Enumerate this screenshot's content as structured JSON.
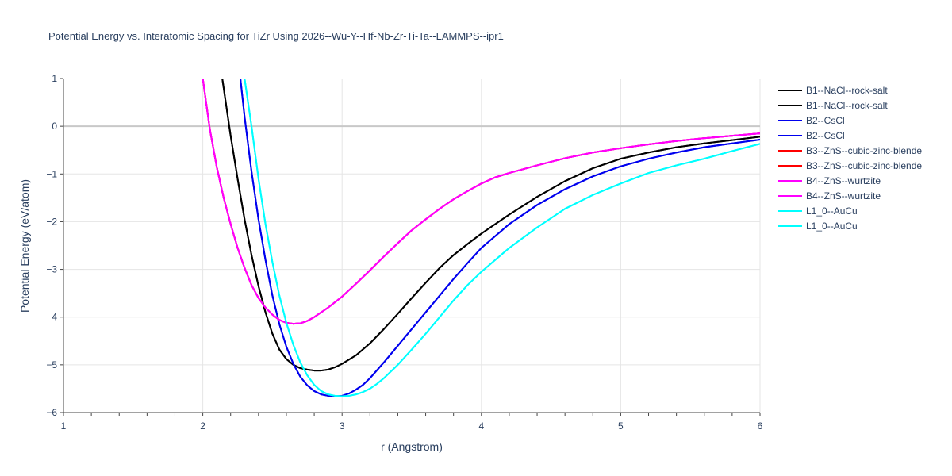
{
  "chart_data": {
    "type": "line",
    "title": "Potential Energy vs. Interatomic Spacing for TiZr Using 2026--Wu-Y--Hf-Nb-Zr-Ti-Ta--LAMMPS--ipr1",
    "xlabel": "r (Angstrom)",
    "ylabel": "Potential Energy (eV/atom)",
    "xlim": [
      1,
      6
    ],
    "ylim": [
      -6,
      1
    ],
    "xticks": [
      "1",
      "2",
      "3",
      "4",
      "5",
      "6"
    ],
    "yticks": [
      "1",
      "0",
      "−1",
      "−2",
      "−3",
      "−4",
      "−5",
      "−6"
    ],
    "grid": true,
    "legend_position": "right",
    "series": [
      {
        "name": "B1--NaCl--rock-salt",
        "color": "#000000",
        "x": [
          2.14,
          2.2,
          2.25,
          2.3,
          2.35,
          2.4,
          2.45,
          2.5,
          2.55,
          2.6,
          2.65,
          2.7,
          2.75,
          2.8,
          2.85,
          2.9,
          2.95,
          3.0,
          3.1,
          3.2,
          3.3,
          3.4,
          3.5,
          3.6,
          3.7,
          3.8,
          3.9,
          4.0,
          4.2,
          4.4,
          4.6,
          4.8,
          5.0,
          5.2,
          5.4,
          5.6,
          5.8,
          6.0
        ],
        "y": [
          1.0,
          -0.2,
          -1.1,
          -1.95,
          -2.7,
          -3.35,
          -3.9,
          -4.35,
          -4.68,
          -4.88,
          -5.0,
          -5.07,
          -5.1,
          -5.12,
          -5.12,
          -5.1,
          -5.05,
          -4.98,
          -4.8,
          -4.55,
          -4.25,
          -3.93,
          -3.6,
          -3.28,
          -2.97,
          -2.7,
          -2.47,
          -2.25,
          -1.85,
          -1.48,
          -1.15,
          -0.88,
          -0.68,
          -0.55,
          -0.44,
          -0.36,
          -0.29,
          -0.22
        ]
      },
      {
        "name": "B1--NaCl--rock-salt",
        "color": "#000000",
        "x": [
          2.14,
          2.2,
          2.25,
          2.3,
          2.35,
          2.4,
          2.45,
          2.5,
          2.55,
          2.6,
          2.65,
          2.7,
          2.75,
          2.8,
          2.85,
          2.9,
          2.95,
          3.0,
          3.1,
          3.2,
          3.3,
          3.4,
          3.5,
          3.6,
          3.7,
          3.8,
          3.9,
          4.0,
          4.2,
          4.4,
          4.6,
          4.8,
          5.0,
          5.2,
          5.4,
          5.6,
          5.8,
          6.0
        ],
        "y": [
          1.0,
          -0.2,
          -1.1,
          -1.95,
          -2.7,
          -3.35,
          -3.9,
          -4.35,
          -4.68,
          -4.88,
          -5.0,
          -5.07,
          -5.1,
          -5.12,
          -5.12,
          -5.1,
          -5.05,
          -4.98,
          -4.8,
          -4.55,
          -4.25,
          -3.93,
          -3.6,
          -3.28,
          -2.97,
          -2.7,
          -2.47,
          -2.25,
          -1.85,
          -1.48,
          -1.15,
          -0.88,
          -0.68,
          -0.55,
          -0.44,
          -0.36,
          -0.29,
          -0.22
        ]
      },
      {
        "name": "B2--CsCl",
        "color": "#0000ee",
        "x": [
          2.27,
          2.3,
          2.35,
          2.4,
          2.45,
          2.5,
          2.55,
          2.6,
          2.65,
          2.7,
          2.75,
          2.8,
          2.85,
          2.9,
          2.95,
          3.0,
          3.05,
          3.1,
          3.15,
          3.2,
          3.3,
          3.4,
          3.5,
          3.6,
          3.7,
          3.8,
          3.9,
          4.0,
          4.2,
          4.4,
          4.6,
          4.8,
          5.0,
          5.2,
          5.4,
          5.6,
          5.8,
          6.0
        ],
        "y": [
          1.0,
          0.2,
          -0.95,
          -1.95,
          -2.8,
          -3.55,
          -4.15,
          -4.62,
          -4.98,
          -5.25,
          -5.43,
          -5.55,
          -5.62,
          -5.65,
          -5.66,
          -5.65,
          -5.6,
          -5.52,
          -5.42,
          -5.28,
          -4.95,
          -4.6,
          -4.25,
          -3.9,
          -3.55,
          -3.2,
          -2.87,
          -2.55,
          -2.05,
          -1.65,
          -1.32,
          -1.05,
          -0.84,
          -0.68,
          -0.55,
          -0.44,
          -0.36,
          -0.28
        ]
      },
      {
        "name": "B2--CsCl",
        "color": "#0000ee",
        "x": [
          2.27,
          2.3,
          2.35,
          2.4,
          2.45,
          2.5,
          2.55,
          2.6,
          2.65,
          2.7,
          2.75,
          2.8,
          2.85,
          2.9,
          2.95,
          3.0,
          3.05,
          3.1,
          3.15,
          3.2,
          3.3,
          3.4,
          3.5,
          3.6,
          3.7,
          3.8,
          3.9,
          4.0,
          4.2,
          4.4,
          4.6,
          4.8,
          5.0,
          5.2,
          5.4,
          5.6,
          5.8,
          6.0
        ],
        "y": [
          1.0,
          0.2,
          -0.95,
          -1.95,
          -2.8,
          -3.55,
          -4.15,
          -4.62,
          -4.98,
          -5.25,
          -5.43,
          -5.55,
          -5.62,
          -5.65,
          -5.66,
          -5.65,
          -5.6,
          -5.52,
          -5.42,
          -5.28,
          -4.95,
          -4.6,
          -4.25,
          -3.9,
          -3.55,
          -3.2,
          -2.87,
          -2.55,
          -2.05,
          -1.65,
          -1.32,
          -1.05,
          -0.84,
          -0.68,
          -0.55,
          -0.44,
          -0.36,
          -0.28
        ]
      },
      {
        "name": "B3--ZnS--cubic-zinc-blende",
        "color": "#ff0000",
        "x": [
          2.0,
          2.05,
          2.1,
          2.15,
          2.2,
          2.25,
          2.3,
          2.35,
          2.4,
          2.45,
          2.5,
          2.55,
          2.6,
          2.65,
          2.7,
          2.75,
          2.8,
          2.9,
          3.0,
          3.1,
          3.2,
          3.3,
          3.4,
          3.5,
          3.6,
          3.7,
          3.8,
          3.9,
          4.0,
          4.1,
          4.2,
          4.4,
          4.6,
          4.8,
          5.0,
          5.2,
          5.4,
          5.6,
          5.8,
          6.0
        ],
        "y": [
          1.0,
          -0.05,
          -0.85,
          -1.5,
          -2.05,
          -2.55,
          -2.97,
          -3.33,
          -3.6,
          -3.8,
          -3.95,
          -4.06,
          -4.12,
          -4.14,
          -4.13,
          -4.08,
          -4.0,
          -3.8,
          -3.57,
          -3.3,
          -3.02,
          -2.73,
          -2.45,
          -2.18,
          -1.95,
          -1.73,
          -1.53,
          -1.36,
          -1.2,
          -1.07,
          -0.98,
          -0.82,
          -0.67,
          -0.55,
          -0.46,
          -0.38,
          -0.31,
          -0.25,
          -0.2,
          -0.15
        ]
      },
      {
        "name": "B3--ZnS--cubic-zinc-blende",
        "color": "#ff0000",
        "x": [
          2.0,
          2.05,
          2.1,
          2.15,
          2.2,
          2.25,
          2.3,
          2.35,
          2.4,
          2.45,
          2.5,
          2.55,
          2.6,
          2.65,
          2.7,
          2.75,
          2.8,
          2.9,
          3.0,
          3.1,
          3.2,
          3.3,
          3.4,
          3.5,
          3.6,
          3.7,
          3.8,
          3.9,
          4.0,
          4.1,
          4.2,
          4.4,
          4.6,
          4.8,
          5.0,
          5.2,
          5.4,
          5.6,
          5.8,
          6.0
        ],
        "y": [
          1.0,
          -0.05,
          -0.85,
          -1.5,
          -2.05,
          -2.55,
          -2.97,
          -3.33,
          -3.6,
          -3.8,
          -3.95,
          -4.06,
          -4.12,
          -4.14,
          -4.13,
          -4.08,
          -4.0,
          -3.8,
          -3.57,
          -3.3,
          -3.02,
          -2.73,
          -2.45,
          -2.18,
          -1.95,
          -1.73,
          -1.53,
          -1.36,
          -1.2,
          -1.07,
          -0.98,
          -0.82,
          -0.67,
          -0.55,
          -0.46,
          -0.38,
          -0.31,
          -0.25,
          -0.2,
          -0.15
        ]
      },
      {
        "name": "B4--ZnS--wurtzite",
        "color": "#ff00ff",
        "x": [
          2.0,
          2.05,
          2.1,
          2.15,
          2.2,
          2.25,
          2.3,
          2.35,
          2.4,
          2.45,
          2.5,
          2.55,
          2.6,
          2.65,
          2.7,
          2.75,
          2.8,
          2.9,
          3.0,
          3.1,
          3.2,
          3.3,
          3.4,
          3.5,
          3.6,
          3.7,
          3.8,
          3.9,
          4.0,
          4.1,
          4.2,
          4.4,
          4.6,
          4.8,
          5.0,
          5.2,
          5.4,
          5.6,
          5.8,
          6.0
        ],
        "y": [
          1.0,
          -0.05,
          -0.85,
          -1.5,
          -2.05,
          -2.55,
          -2.97,
          -3.33,
          -3.6,
          -3.8,
          -3.95,
          -4.06,
          -4.12,
          -4.14,
          -4.13,
          -4.08,
          -4.0,
          -3.8,
          -3.57,
          -3.3,
          -3.02,
          -2.73,
          -2.45,
          -2.18,
          -1.95,
          -1.73,
          -1.53,
          -1.36,
          -1.2,
          -1.07,
          -0.98,
          -0.82,
          -0.67,
          -0.55,
          -0.46,
          -0.38,
          -0.31,
          -0.25,
          -0.2,
          -0.15
        ]
      },
      {
        "name": "B4--ZnS--wurtzite",
        "color": "#ff00ff",
        "x": [
          2.0,
          2.05,
          2.1,
          2.15,
          2.2,
          2.25,
          2.3,
          2.35,
          2.4,
          2.45,
          2.5,
          2.55,
          2.6,
          2.65,
          2.7,
          2.75,
          2.8,
          2.9,
          3.0,
          3.1,
          3.2,
          3.3,
          3.4,
          3.5,
          3.6,
          3.7,
          3.8,
          3.9,
          4.0,
          4.1,
          4.2,
          4.4,
          4.6,
          4.8,
          5.0,
          5.2,
          5.4,
          5.6,
          5.8,
          6.0
        ],
        "y": [
          1.0,
          -0.05,
          -0.85,
          -1.5,
          -2.05,
          -2.55,
          -2.97,
          -3.33,
          -3.6,
          -3.8,
          -3.95,
          -4.06,
          -4.12,
          -4.14,
          -4.13,
          -4.08,
          -4.0,
          -3.8,
          -3.57,
          -3.3,
          -3.02,
          -2.73,
          -2.45,
          -2.18,
          -1.95,
          -1.73,
          -1.53,
          -1.36,
          -1.2,
          -1.07,
          -0.98,
          -0.82,
          -0.67,
          -0.55,
          -0.46,
          -0.38,
          -0.31,
          -0.25,
          -0.2,
          -0.15
        ]
      },
      {
        "name": "L1_0--AuCu",
        "color": "#00ffff",
        "x": [
          2.3,
          2.35,
          2.4,
          2.45,
          2.5,
          2.55,
          2.6,
          2.65,
          2.7,
          2.75,
          2.8,
          2.85,
          2.9,
          2.95,
          3.0,
          3.05,
          3.1,
          3.15,
          3.2,
          3.25,
          3.3,
          3.4,
          3.5,
          3.6,
          3.7,
          3.8,
          3.9,
          4.0,
          4.2,
          4.4,
          4.6,
          4.8,
          5.0,
          5.2,
          5.4,
          5.6,
          5.8,
          6.0
        ],
        "y": [
          1.0,
          0.0,
          -1.1,
          -2.05,
          -2.85,
          -3.55,
          -4.12,
          -4.58,
          -4.95,
          -5.22,
          -5.42,
          -5.55,
          -5.62,
          -5.65,
          -5.66,
          -5.65,
          -5.62,
          -5.57,
          -5.5,
          -5.4,
          -5.28,
          -5.0,
          -4.68,
          -4.35,
          -4.0,
          -3.65,
          -3.33,
          -3.05,
          -2.55,
          -2.12,
          -1.73,
          -1.44,
          -1.2,
          -0.98,
          -0.82,
          -0.68,
          -0.52,
          -0.37
        ]
      },
      {
        "name": "L1_0--AuCu",
        "color": "#00ffff",
        "x": [
          2.3,
          2.35,
          2.4,
          2.45,
          2.5,
          2.55,
          2.6,
          2.65,
          2.7,
          2.75,
          2.8,
          2.85,
          2.9,
          2.95,
          3.0,
          3.05,
          3.1,
          3.15,
          3.2,
          3.25,
          3.3,
          3.4,
          3.5,
          3.6,
          3.7,
          3.8,
          3.9,
          4.0,
          4.2,
          4.4,
          4.6,
          4.8,
          5.0,
          5.2,
          5.4,
          5.6,
          5.8,
          6.0
        ],
        "y": [
          1.0,
          0.0,
          -1.1,
          -2.05,
          -2.85,
          -3.55,
          -4.12,
          -4.58,
          -4.95,
          -5.22,
          -5.42,
          -5.55,
          -5.62,
          -5.65,
          -5.66,
          -5.65,
          -5.62,
          -5.57,
          -5.5,
          -5.4,
          -5.28,
          -5.0,
          -4.68,
          -4.35,
          -4.0,
          -3.65,
          -3.33,
          -3.05,
          -2.55,
          -2.12,
          -1.73,
          -1.44,
          -1.2,
          -0.98,
          -0.82,
          -0.68,
          -0.52,
          -0.37
        ]
      }
    ]
  }
}
